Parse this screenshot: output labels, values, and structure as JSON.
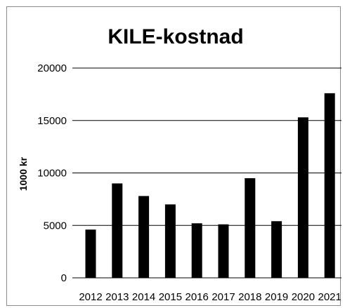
{
  "chart_data": {
    "type": "bar",
    "title": "KILE-kostnad",
    "xlabel": "",
    "ylabel": "1000 kr",
    "categories": [
      "2012",
      "2013",
      "2014",
      "2015",
      "2016",
      "2017",
      "2018",
      "2019",
      "2020",
      "2021"
    ],
    "values": [
      4600,
      9000,
      7800,
      7000,
      5200,
      5100,
      9500,
      5400,
      15300,
      17600
    ],
    "ylim": [
      0,
      20000
    ],
    "yticks": [
      "0",
      "5000",
      "10000",
      "15000",
      "20000"
    ],
    "grid": true,
    "legend": "none",
    "bar_color": "#000000"
  }
}
